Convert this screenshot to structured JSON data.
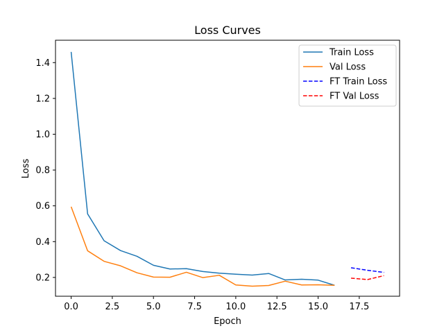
{
  "chart_data": {
    "type": "line",
    "title": "Loss Curves",
    "xlabel": "Epoch",
    "ylabel": "Loss",
    "xlim": [
      -0.95,
      19.95
    ],
    "ylim": [
      0.095,
      1.525
    ],
    "xticks": [
      0.0,
      2.5,
      5.0,
      7.5,
      10.0,
      12.5,
      15.0,
      17.5
    ],
    "xtick_labels": [
      "0.0",
      "2.5",
      "5.0",
      "7.5",
      "10.0",
      "12.5",
      "15.0",
      "17.5"
    ],
    "yticks": [
      0.2,
      0.4,
      0.6,
      0.8,
      1.0,
      1.2,
      1.4
    ],
    "ytick_labels": [
      "0.2",
      "0.4",
      "0.6",
      "0.8",
      "1.0",
      "1.2",
      "1.4"
    ],
    "grid": false,
    "legend_position": "top-right",
    "series": [
      {
        "name": "Train Loss",
        "color": "#1f77b4",
        "style": "solid",
        "x": [
          0,
          1,
          2,
          3,
          4,
          5,
          6,
          7,
          8,
          9,
          10,
          11,
          12,
          13,
          14,
          15,
          16
        ],
        "y": [
          1.46,
          0.555,
          0.405,
          0.35,
          0.318,
          0.268,
          0.247,
          0.249,
          0.233,
          0.224,
          0.218,
          0.213,
          0.222,
          0.186,
          0.19,
          0.185,
          0.156
        ]
      },
      {
        "name": "Val Loss",
        "color": "#ff7f0e",
        "style": "solid",
        "x": [
          0,
          1,
          2,
          3,
          4,
          5,
          6,
          7,
          8,
          9,
          10,
          11,
          12,
          13,
          14,
          15,
          16
        ],
        "y": [
          0.595,
          0.349,
          0.29,
          0.265,
          0.226,
          0.202,
          0.201,
          0.229,
          0.199,
          0.212,
          0.158,
          0.151,
          0.155,
          0.179,
          0.158,
          0.159,
          0.156
        ]
      },
      {
        "name": "FT Train Loss",
        "color": "#0000ff",
        "style": "dashed",
        "x": [
          17,
          18,
          19
        ],
        "y": [
          0.254,
          0.24,
          0.228
        ]
      },
      {
        "name": "FT Val Loss",
        "color": "#ff0000",
        "style": "dashed",
        "x": [
          17,
          18,
          19
        ],
        "y": [
          0.196,
          0.188,
          0.21
        ]
      }
    ]
  }
}
